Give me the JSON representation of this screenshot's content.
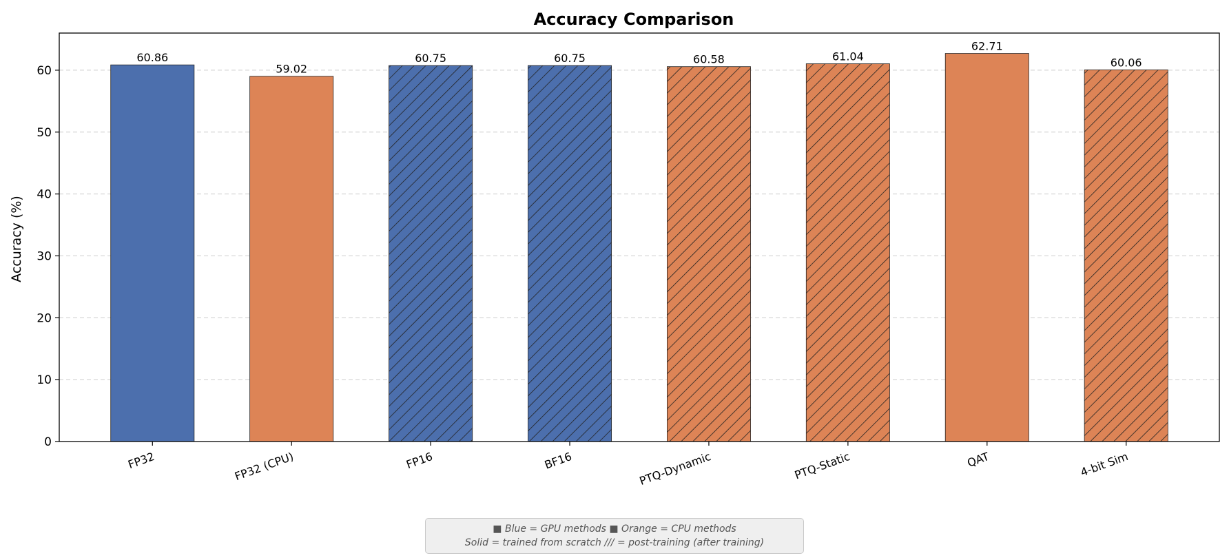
{
  "chart_data": {
    "type": "bar",
    "title": "Accuracy Comparison",
    "xlabel": "",
    "ylabel": "Accuracy (%)",
    "ylim": [
      0,
      66
    ],
    "yticks": [
      0,
      10,
      20,
      30,
      40,
      50,
      60
    ],
    "grid": "y-dashed",
    "categories": [
      "FP32",
      "FP32 (CPU)",
      "FP16",
      "BF16",
      "PTQ-Dynamic",
      "PTQ-Static",
      "QAT",
      "4-bit Sim"
    ],
    "values": [
      60.86,
      59.02,
      60.75,
      60.75,
      60.58,
      61.04,
      62.71,
      60.06
    ],
    "value_labels": [
      "60.86",
      "59.02",
      "60.75",
      "60.75",
      "60.58",
      "61.04",
      "62.71",
      "60.06"
    ],
    "bar_groups": [
      "GPU",
      "CPU",
      "GPU",
      "GPU",
      "CPU",
      "CPU",
      "CPU",
      "CPU"
    ],
    "hatched": [
      false,
      false,
      true,
      true,
      true,
      true,
      false,
      true
    ],
    "colors": {
      "GPU": "#4c6fad",
      "CPU": "#dd8456",
      "edge": "#222222",
      "grid": "#cccccc"
    },
    "note": {
      "line1": "■ Blue = GPU methods    ■ Orange = CPU methods",
      "line2": "Solid = trained from scratch    /// = post-training (after training)"
    }
  }
}
